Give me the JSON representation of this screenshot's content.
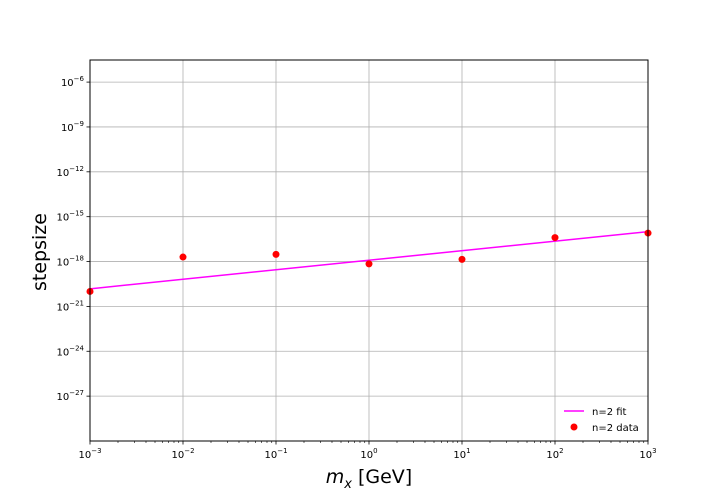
{
  "chart_data": {
    "type": "scatter",
    "xlabel_var": "m",
    "xlabel_sub": "x",
    "xlabel_unit": "[GeV]",
    "ylabel": "stepsize",
    "x_scale": "log",
    "y_scale": "log",
    "xlim": [
      0.001,
      1000
    ],
    "ylim": [
      1e-30,
      3e-05
    ],
    "x_tick_exponents": [
      -3,
      -2,
      -1,
      0,
      1,
      2,
      3
    ],
    "y_tick_exponents": [
      -27,
      -24,
      -21,
      -18,
      -15,
      -12,
      -9,
      -6
    ],
    "grid": true,
    "legend_position": "lower right",
    "series": [
      {
        "name": "n=2 fit",
        "kind": "line",
        "color": "#ff00ff",
        "x": [
          0.001,
          1000
        ],
        "y": [
          1.5e-20,
          1e-16
        ]
      },
      {
        "name": "n=2 data",
        "kind": "scatter",
        "color": "#ff0000",
        "x": [
          0.001,
          0.01,
          0.1,
          1,
          10,
          100,
          1000
        ],
        "y": [
          1e-20,
          2e-18,
          3e-18,
          7e-19,
          1.4e-18,
          4e-17,
          8e-17
        ]
      }
    ]
  }
}
